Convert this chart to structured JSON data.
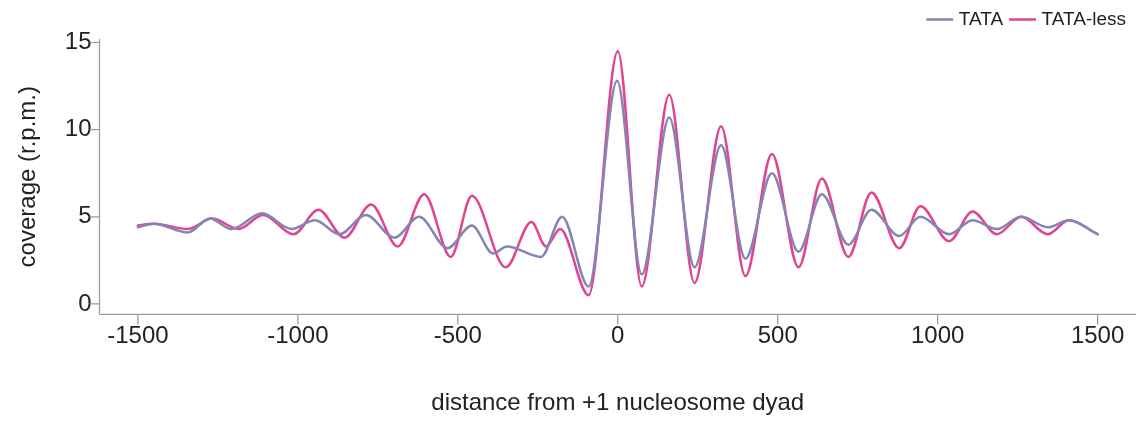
{
  "chart_data": {
    "type": "line",
    "xlabel": "distance from +1 nucleosome dyad",
    "ylabel": "coverage (r.p.m.)",
    "xlim": [
      -1620,
      1620
    ],
    "ylim": [
      -0.6,
      15.2
    ],
    "xticks": [
      -1500,
      -1000,
      -500,
      0,
      500,
      1000,
      1500
    ],
    "yticks": [
      0,
      5,
      10,
      15
    ],
    "grid": false,
    "legend": "top right",
    "marker": "none",
    "line_style": "solid",
    "series": [
      {
        "name": "TATA",
        "color": "#8585b5",
        "x": [
          -1500,
          -1450,
          -1344,
          -1275,
          -1208,
          -1112,
          -1020,
          -946,
          -870,
          -787,
          -698,
          -621,
          -532,
          -456,
          -390,
          -346,
          -240,
          -174,
          -91,
          -2,
          75,
          161,
          240,
          323,
          399,
          482,
          565,
          638,
          721,
          793,
          880,
          946,
          1036,
          1109,
          1185,
          1261,
          1344,
          1410,
          1500
        ],
        "values": [
          4.4,
          4.6,
          4.1,
          4.9,
          4.3,
          5.2,
          4.3,
          4.8,
          4.0,
          5.1,
          3.8,
          5.0,
          3.2,
          4.5,
          2.9,
          3.3,
          2.7,
          5.0,
          1.0,
          12.8,
          1.7,
          10.7,
          2.1,
          9.1,
          2.6,
          7.5,
          3.0,
          6.3,
          3.4,
          5.4,
          3.9,
          5.0,
          4.0,
          4.8,
          4.3,
          5.0,
          4.4,
          4.8,
          4.0
        ]
      },
      {
        "name": "TATA-less",
        "color": "#e0458f",
        "x": [
          -1500,
          -1450,
          -1344,
          -1268,
          -1185,
          -1109,
          -1013,
          -936,
          -854,
          -771,
          -688,
          -605,
          -522,
          -456,
          -350,
          -270,
          -224,
          -180,
          -91,
          0,
          75,
          161,
          240,
          323,
          399,
          482,
          565,
          638,
          721,
          793,
          880,
          946,
          1036,
          1109,
          1185,
          1261,
          1344,
          1410,
          1500
        ],
        "values": [
          4.5,
          4.6,
          4.3,
          4.9,
          4.3,
          5.1,
          4.0,
          5.4,
          3.8,
          5.7,
          3.3,
          6.3,
          2.7,
          6.2,
          2.1,
          4.7,
          3.3,
          4.3,
          0.5,
          14.5,
          1.0,
          12.0,
          1.2,
          10.2,
          1.6,
          8.6,
          2.1,
          7.2,
          2.7,
          6.4,
          3.2,
          5.6,
          3.6,
          5.3,
          4.0,
          5.0,
          4.0,
          4.8,
          4.0
        ]
      }
    ]
  }
}
